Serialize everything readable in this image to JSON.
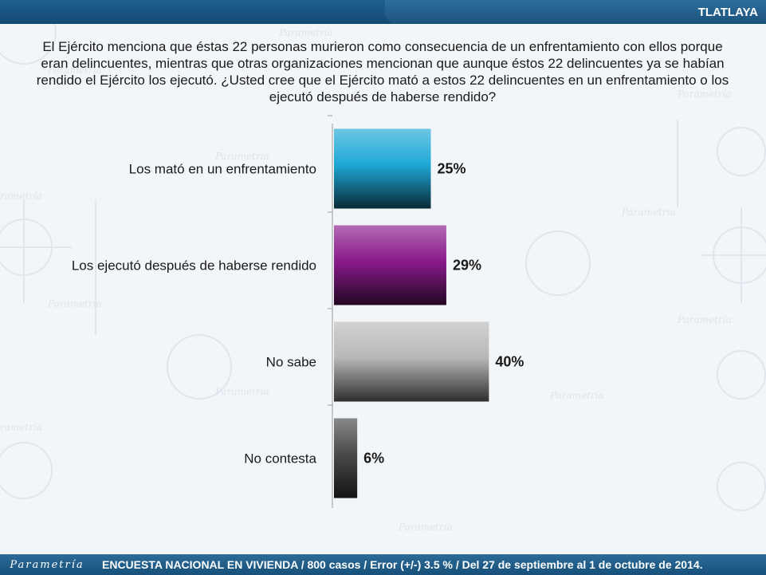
{
  "header": {
    "tab_label": "TLATLAYA"
  },
  "question": "El Ejército menciona que éstas 22 personas murieron como consecuencia de un enfrentamiento con ellos porque eran delincuentes, mientras que otras organizaciones mencionan que aunque éstos 22 delincuentes ya se habían rendido el Ejército los ejecutó. ¿Usted cree que el Ejército mató a estos 22 delincuentes en un enfrentamiento o los ejecutó después de haberse rendido?",
  "footer": {
    "logo": "Parametría",
    "text": "ENCUESTA NACIONAL EN VIVIENDA / 800 casos / Error (+/-) 3.5 % / Del 27 de septiembre al 1 de octubre de 2014."
  },
  "colors": {
    "bar_1": "#1fa8d6",
    "bar_2": "#8a1a8c",
    "bar_3": "#b8b8b8",
    "bar_4": "#4a4a4a",
    "brand": "#1b527c"
  },
  "chart_data": {
    "type": "bar",
    "orientation": "horizontal",
    "categories": [
      "Los mató en un enfrentamiento",
      "Los ejecutó después de haberse rendido",
      "No sabe",
      "No contesta"
    ],
    "values": [
      25,
      29,
      40,
      6
    ],
    "data_labels": [
      "25%",
      "29%",
      "40%",
      "6%"
    ],
    "xlim": [
      0,
      90
    ],
    "grid": false,
    "legend": "none"
  }
}
